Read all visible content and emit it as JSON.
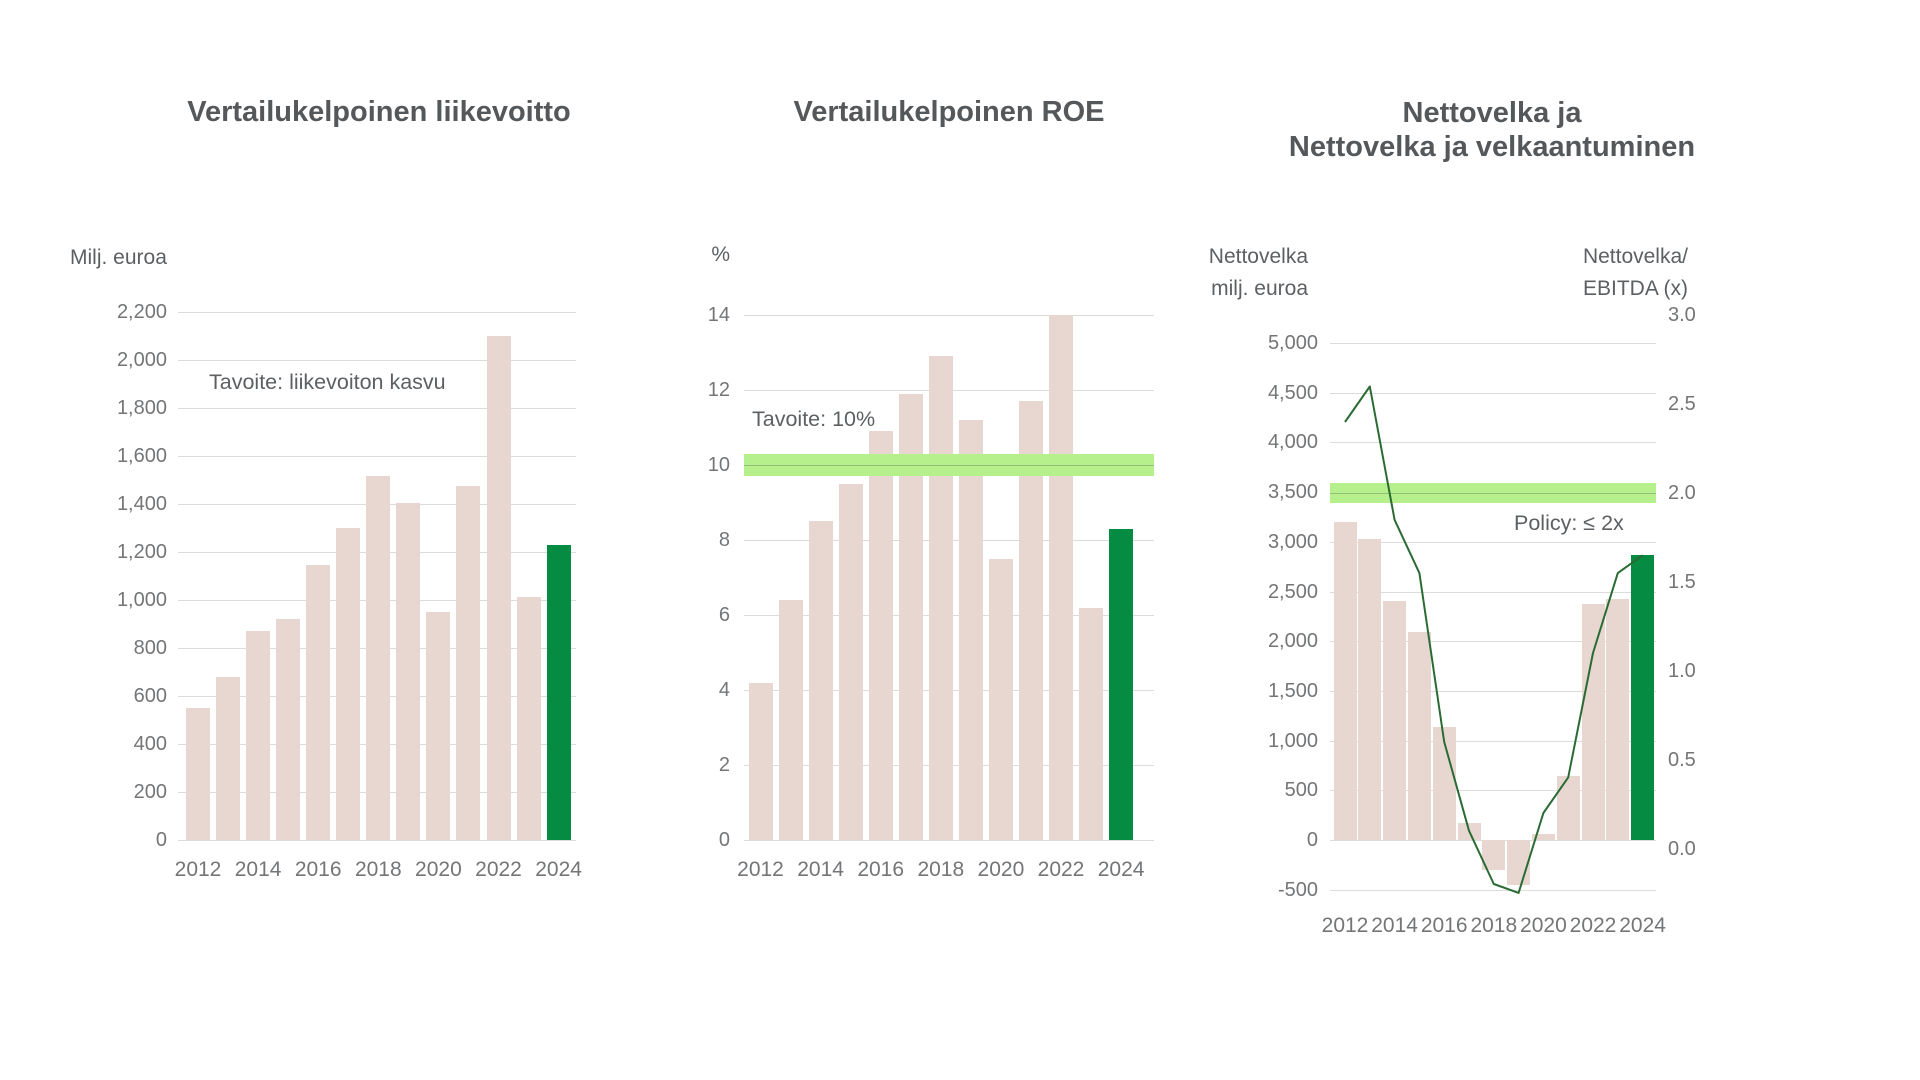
{
  "page": {
    "background": "#ffffff"
  },
  "colors": {
    "bar_default": "#e7d7d0",
    "bar_highlight": "#068c42",
    "target_band": "#b5f08c",
    "trend_line": "#2a6b33",
    "gridline": "#dcdcdc",
    "title_text": "#55585a",
    "tick_text": "#737577",
    "annotation_text": "#5d6063"
  },
  "chart_data": [
    {
      "type": "bar",
      "title": "Vertailukelpoinen liikevoitto",
      "unit_label": "Milj. euroa",
      "annotation": "Tavoite: liikevoiton kasvu",
      "categories": [
        2012,
        2013,
        2014,
        2015,
        2016,
        2017,
        2018,
        2019,
        2020,
        2021,
        2022,
        2023,
        2024
      ],
      "values": [
        550,
        680,
        870,
        920,
        1145,
        1300,
        1515,
        1405,
        950,
        1475,
        2100,
        1010,
        1230
      ],
      "highlight_last": true,
      "ylim": [
        0,
        2200
      ],
      "ytick_step": 200,
      "ytick_labels": [
        "2,200",
        "2,000",
        "1,800",
        "1,600",
        "1,400",
        "1,200",
        "1,000",
        "800",
        "600",
        "400",
        "200",
        "0"
      ],
      "xtick_labels": [
        "2012",
        "2014",
        "2016",
        "2018",
        "2020",
        "2022",
        "2024"
      ],
      "legend_position": "none",
      "grid": true
    },
    {
      "type": "bar",
      "title": "Vertailukelpoinen ROE",
      "unit_label": "%",
      "annotation": "Tavoite: 10%",
      "categories": [
        2012,
        2013,
        2014,
        2015,
        2016,
        2017,
        2018,
        2019,
        2020,
        2021,
        2022,
        2023,
        2024
      ],
      "values": [
        4.2,
        6.4,
        8.5,
        9.5,
        10.9,
        11.9,
        12.9,
        11.2,
        7.5,
        11.7,
        14.0,
        6.2,
        8.3
      ],
      "highlight_last": true,
      "target_band": {
        "value": 10,
        "half_width": 0.29
      },
      "ylim": [
        0,
        14
      ],
      "ytick_step": 2,
      "ytick_labels": [
        "14",
        "12",
        "10",
        "8",
        "6",
        "4",
        "2",
        "0"
      ],
      "xtick_labels": [
        "2012",
        "2014",
        "2016",
        "2018",
        "2020",
        "2022",
        "2024"
      ],
      "legend_position": "none",
      "grid": true
    },
    {
      "type": "bar+line",
      "title_lines": [
        "Nettovelka ja",
        "Nettovelka ja velkaantuminen"
      ],
      "left_axis_label": [
        "Nettovelka",
        "milj. euroa"
      ],
      "right_axis_label": [
        "Nettovelka/",
        "EBITDA (x)"
      ],
      "annotation": "Policy: ≤ 2x",
      "categories": [
        2012,
        2013,
        2014,
        2015,
        2016,
        2017,
        2018,
        2019,
        2020,
        2021,
        2022,
        2023,
        2024
      ],
      "series": [
        {
          "name": "Nettovelka, milj. euroa",
          "axis": "left",
          "type": "bar",
          "values": [
            3200,
            3030,
            2400,
            2090,
            1140,
            170,
            -300,
            -450,
            60,
            640,
            2370,
            2430,
            2870
          ]
        },
        {
          "name": "Nettovelka/EBITDA (x)",
          "axis": "right",
          "type": "line",
          "values": [
            2.4,
            2.6,
            1.85,
            1.55,
            0.6,
            0.1,
            -0.2,
            -0.25,
            0.2,
            0.4,
            1.1,
            1.55,
            1.65
          ]
        }
      ],
      "highlight_last": true,
      "target_band": {
        "value": 2.0,
        "half_width": 0.056,
        "axis": "right"
      },
      "left_ylim": [
        -500,
        5000
      ],
      "left_ytick_step": 500,
      "left_ytick_labels": [
        "5,000",
        "4,500",
        "4,000",
        "3,500",
        "3,000",
        "2,500",
        "2,000",
        "1,500",
        "1,000",
        "500",
        "0",
        "-500"
      ],
      "right_ylim": [
        0.0,
        3.0
      ],
      "right_ytick_labels": [
        "3.0",
        "2.5",
        "2.0",
        "1.5",
        "1.0",
        "0.5",
        "0.0"
      ],
      "right_ytick_values": [
        3.0,
        2.5,
        2.0,
        1.5,
        1.0,
        0.5,
        0.0
      ],
      "xtick_labels": [
        "2012",
        "2014",
        "2016",
        "2018",
        "2020",
        "2022",
        "2024"
      ],
      "legend_position": "none",
      "grid": true
    }
  ]
}
